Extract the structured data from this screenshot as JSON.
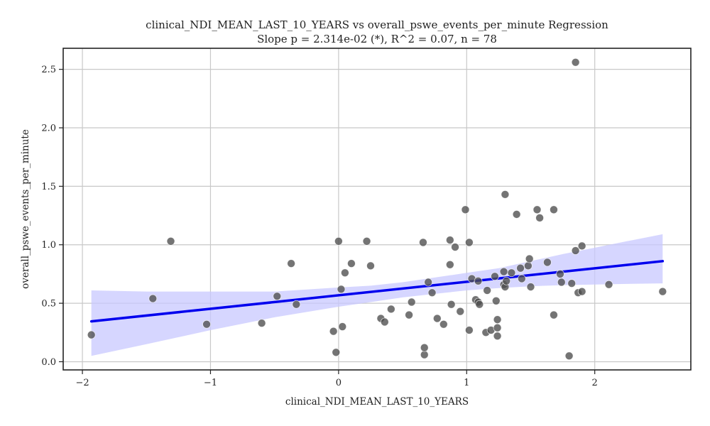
{
  "chart_data": {
    "type": "scatter",
    "title": "clinical_NDI_MEAN_LAST_10_YEARS vs overall_pswe_events_per_minute Regression",
    "subtitle": "Slope p = 2.314e-02 (*), R^2 = 0.07, n = 78",
    "xlabel": "clinical_NDI_MEAN_LAST_10_YEARS",
    "ylabel": "overall_pswe_events_per_minute",
    "xlim": [
      -2.15,
      2.75
    ],
    "ylim": [
      -0.07,
      2.68
    ],
    "xticks": [
      -2,
      -1,
      0,
      1,
      2
    ],
    "xtick_labels": [
      "−2",
      "−1",
      "0",
      "1",
      "2"
    ],
    "yticks": [
      0.0,
      0.5,
      1.0,
      1.5,
      2.0,
      2.5
    ],
    "ytick_labels": [
      "0.0",
      "0.5",
      "1.0",
      "1.5",
      "2.0",
      "2.5"
    ],
    "grid": true,
    "colors": {
      "points": "#4d4d4d",
      "regression_line": "#0000ee",
      "confidence_band": "#c8c8ff",
      "grid": "#c8c8c8",
      "frame": "#222222"
    },
    "points": [
      [
        -1.93,
        0.23
      ],
      [
        -1.45,
        0.54
      ],
      [
        -1.31,
        1.03
      ],
      [
        -1.03,
        0.32
      ],
      [
        -0.6,
        0.33
      ],
      [
        -0.48,
        0.56
      ],
      [
        -0.37,
        0.84
      ],
      [
        -0.33,
        0.49
      ],
      [
        -0.04,
        0.26
      ],
      [
        -0.02,
        0.08
      ],
      [
        0.0,
        1.03
      ],
      [
        0.02,
        0.62
      ],
      [
        0.03,
        0.3
      ],
      [
        0.05,
        0.76
      ],
      [
        0.1,
        0.84
      ],
      [
        0.22,
        1.03
      ],
      [
        0.25,
        0.82
      ],
      [
        0.33,
        0.37
      ],
      [
        0.36,
        0.34
      ],
      [
        0.41,
        0.45
      ],
      [
        0.55,
        0.4
      ],
      [
        0.57,
        0.51
      ],
      [
        0.66,
        1.02
      ],
      [
        0.67,
        0.06
      ],
      [
        0.67,
        0.12
      ],
      [
        0.7,
        0.68
      ],
      [
        0.73,
        0.59
      ],
      [
        0.77,
        0.37
      ],
      [
        0.82,
        0.32
      ],
      [
        0.87,
        1.04
      ],
      [
        0.87,
        0.83
      ],
      [
        0.88,
        0.49
      ],
      [
        0.91,
        0.98
      ],
      [
        0.95,
        0.43
      ],
      [
        0.99,
        1.3
      ],
      [
        1.02,
        1.02
      ],
      [
        1.02,
        0.27
      ],
      [
        1.04,
        0.71
      ],
      [
        1.07,
        0.53
      ],
      [
        1.09,
        0.69
      ],
      [
        1.09,
        0.51
      ],
      [
        1.1,
        0.49
      ],
      [
        1.15,
        0.25
      ],
      [
        1.16,
        0.61
      ],
      [
        1.19,
        0.27
      ],
      [
        1.22,
        0.73
      ],
      [
        1.23,
        0.52
      ],
      [
        1.24,
        0.29
      ],
      [
        1.24,
        0.36
      ],
      [
        1.24,
        0.22
      ],
      [
        1.29,
        0.66
      ],
      [
        1.29,
        0.77
      ],
      [
        1.3,
        0.64
      ],
      [
        1.3,
        1.43
      ],
      [
        1.31,
        0.69
      ],
      [
        1.35,
        0.76
      ],
      [
        1.39,
        1.26
      ],
      [
        1.42,
        0.8
      ],
      [
        1.43,
        0.71
      ],
      [
        1.48,
        0.82
      ],
      [
        1.49,
        0.88
      ],
      [
        1.5,
        0.64
      ],
      [
        1.55,
        1.3
      ],
      [
        1.57,
        1.23
      ],
      [
        1.63,
        0.85
      ],
      [
        1.68,
        1.3
      ],
      [
        1.68,
        0.4
      ],
      [
        1.73,
        0.75
      ],
      [
        1.74,
        0.68
      ],
      [
        1.8,
        0.05
      ],
      [
        1.82,
        0.67
      ],
      [
        1.85,
        0.95
      ],
      [
        1.85,
        2.56
      ],
      [
        1.87,
        0.59
      ],
      [
        1.9,
        0.99
      ],
      [
        1.9,
        0.6
      ],
      [
        2.11,
        0.66
      ],
      [
        2.53,
        0.6
      ]
    ],
    "regression": {
      "x": [
        -1.93,
        2.53
      ],
      "y": [
        0.345,
        0.86
      ]
    },
    "confidence_band": {
      "x": [
        -1.93,
        -1.5,
        -1.0,
        -0.5,
        0.0,
        0.25,
        0.5,
        0.75,
        1.0,
        1.25,
        1.5,
        1.75,
        2.0,
        2.25,
        2.53
      ],
      "lower": [
        0.05,
        0.15,
        0.27,
        0.38,
        0.47,
        0.51,
        0.55,
        0.58,
        0.61,
        0.63,
        0.645,
        0.655,
        0.66,
        0.665,
        0.67
      ],
      "upper": [
        0.61,
        0.6,
        0.6,
        0.6,
        0.635,
        0.65,
        0.68,
        0.72,
        0.76,
        0.8,
        0.86,
        0.92,
        0.975,
        1.03,
        1.09
      ]
    }
  }
}
